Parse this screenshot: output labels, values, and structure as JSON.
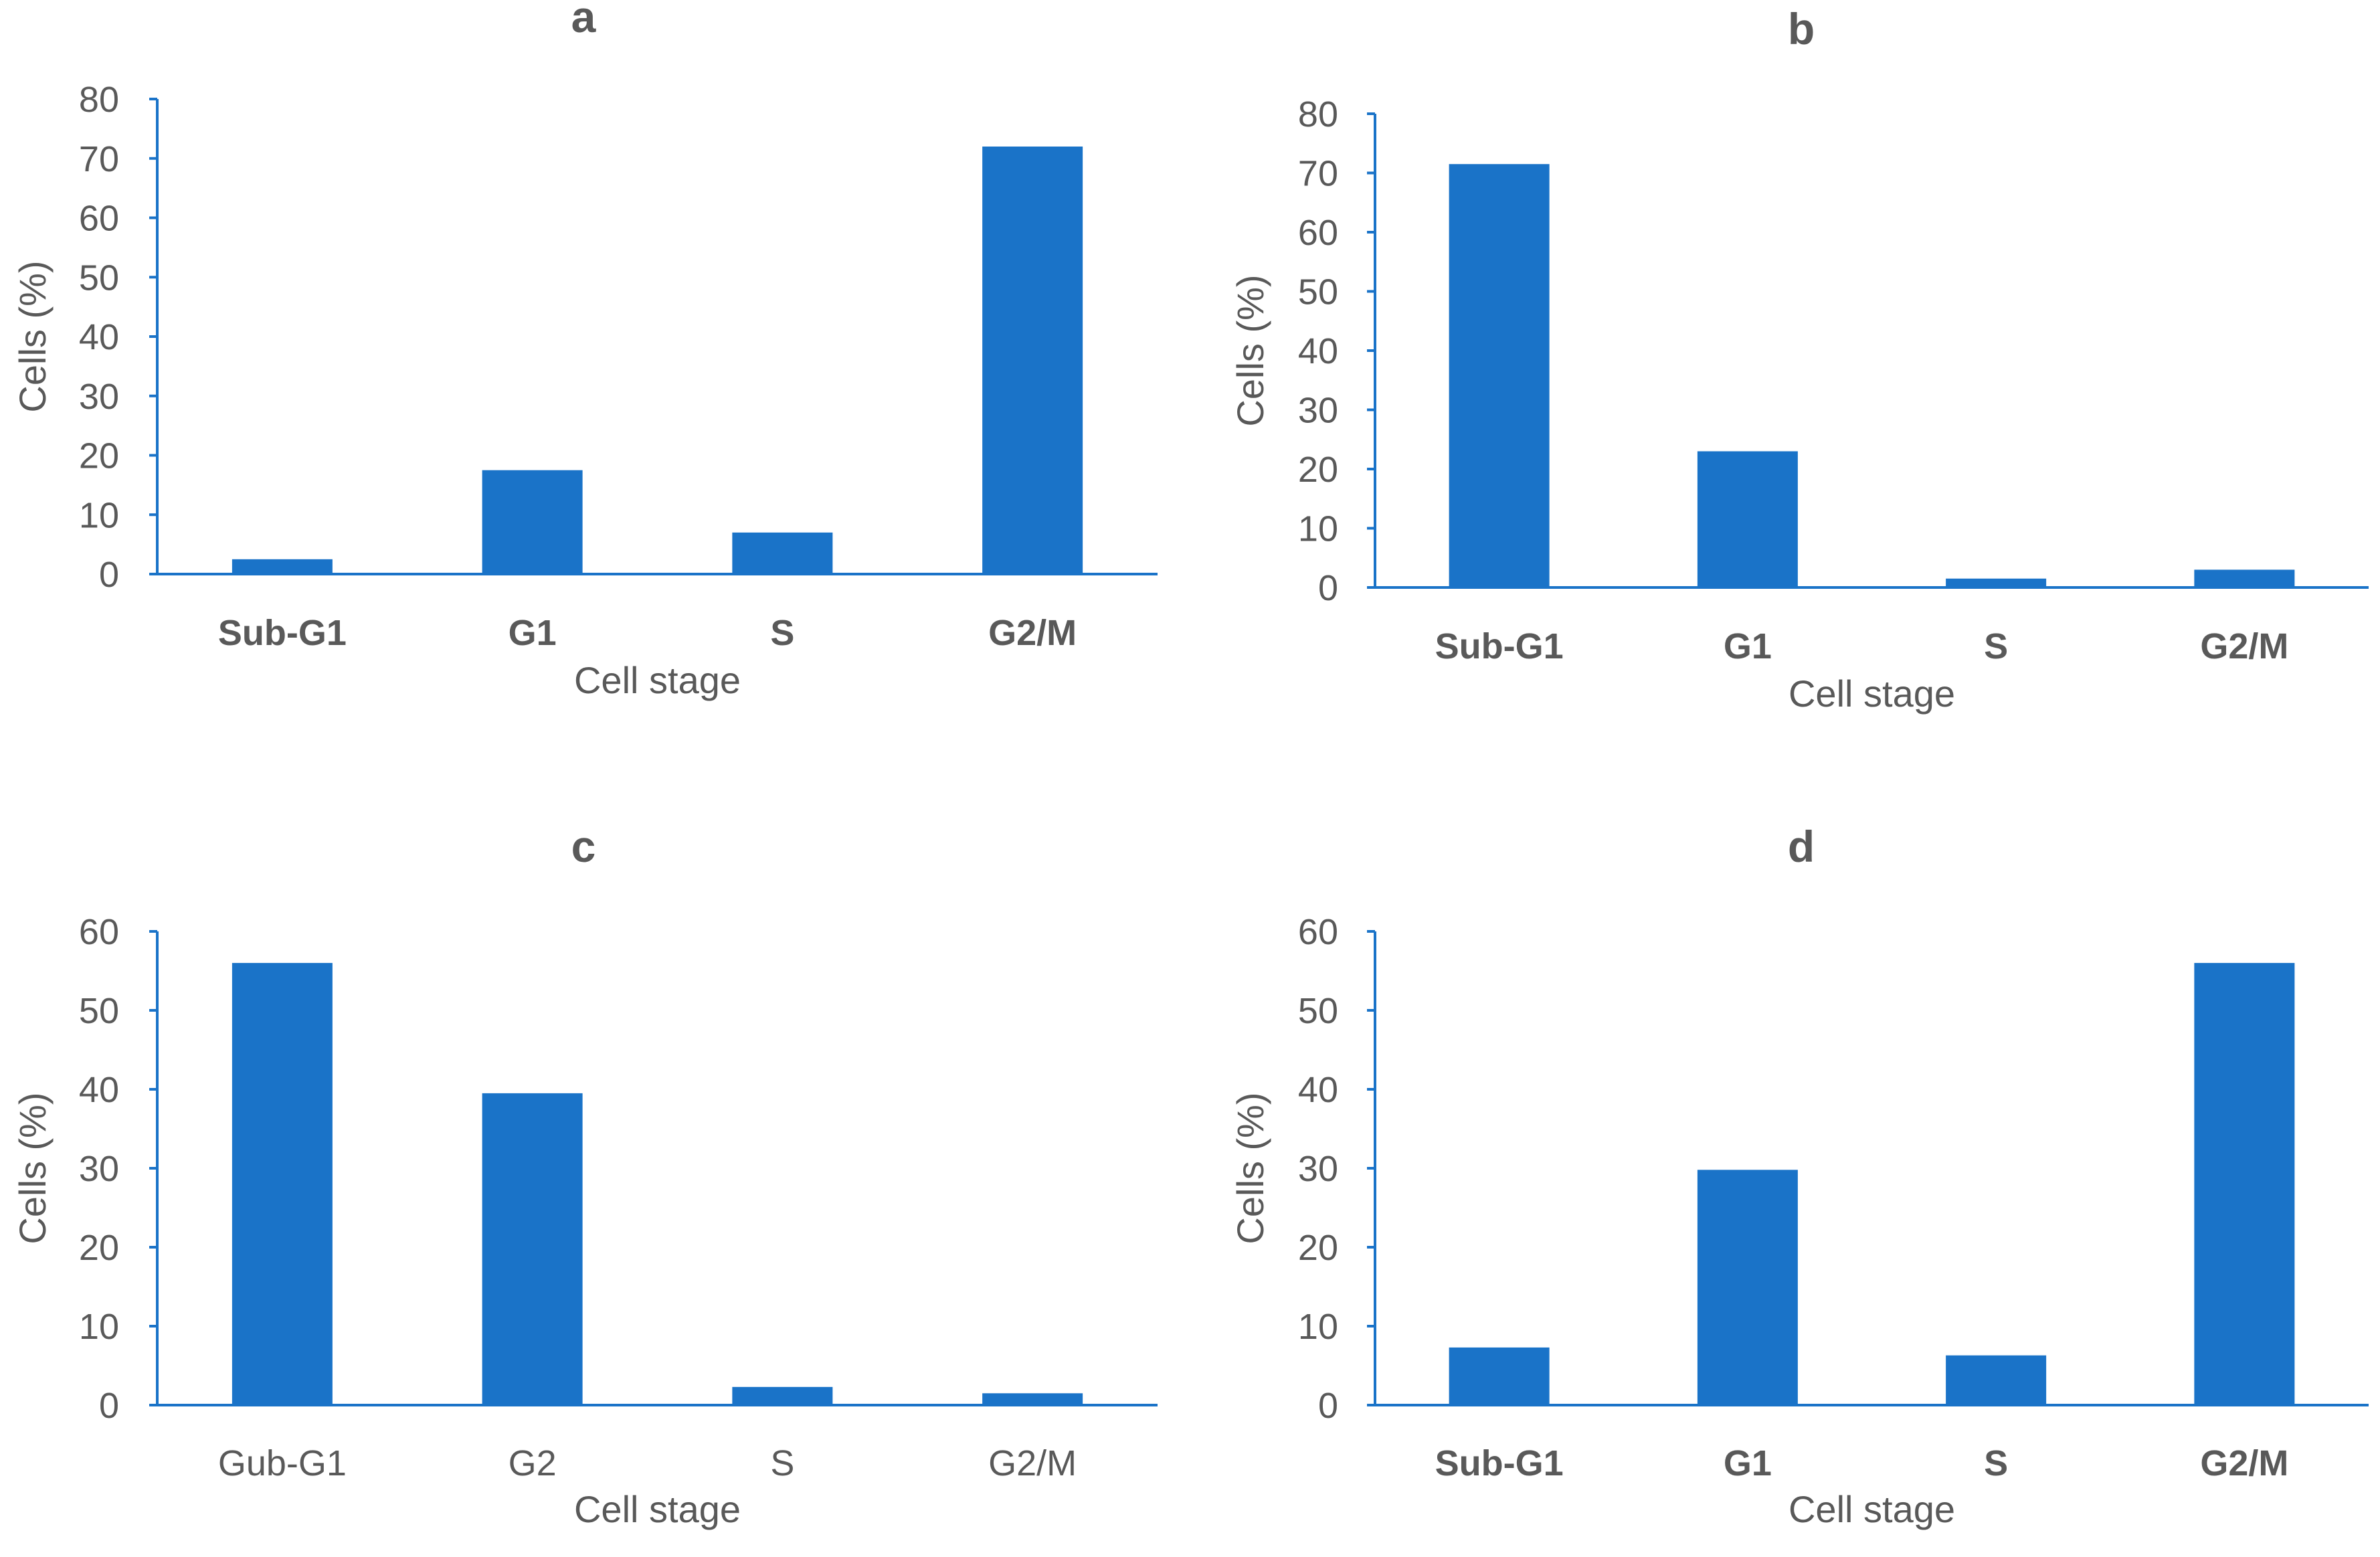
{
  "colors": {
    "bar": "#1a73c8",
    "axis": "#1a73c8",
    "text": "#595959",
    "background": "#ffffff"
  },
  "chart_data": [
    {
      "type": "bar",
      "title": "a",
      "categories": [
        "Sub-G1",
        "G1",
        "S",
        "G2/M"
      ],
      "category_labels_bold": true,
      "values": [
        2.5,
        17.5,
        7,
        72
      ],
      "xlabel": "Cell stage",
      "ylabel": "Cells (%)",
      "ylim": [
        0,
        80
      ],
      "yticks": [
        "0",
        "10",
        "20",
        "30",
        "40",
        "50",
        "60",
        "70",
        "80"
      ],
      "grid": false
    },
    {
      "type": "bar",
      "title": "b",
      "categories": [
        "Sub-G1",
        "G1",
        "S",
        "G2/M"
      ],
      "category_labels_bold": true,
      "values": [
        71.5,
        23,
        1.5,
        3
      ],
      "xlabel": "Cell stage",
      "ylabel": "Cells (%)",
      "ylim": [
        0,
        80
      ],
      "yticks": [
        "0",
        "10",
        "20",
        "30",
        "40",
        "50",
        "60",
        "70",
        "80"
      ],
      "grid": false
    },
    {
      "type": "bar",
      "title": "c",
      "categories": [
        "Gub-G1",
        "G2",
        "S",
        "G2/M"
      ],
      "category_labels_bold": false,
      "values": [
        56,
        39.5,
        2.3,
        1.5
      ],
      "xlabel": "Cell stage",
      "ylabel": "Cells (%)",
      "ylim": [
        0,
        60
      ],
      "yticks": [
        "0",
        "10",
        "20",
        "30",
        "40",
        "50",
        "60"
      ],
      "grid": false
    },
    {
      "type": "bar",
      "title": "d",
      "categories": [
        "Sub-G1",
        "G1",
        "S",
        "G2/M"
      ],
      "category_labels_bold": true,
      "values": [
        7.3,
        29.8,
        6.3,
        56
      ],
      "xlabel": "Cell stage",
      "ylabel": "Cells (%)",
      "ylim": [
        0,
        60
      ],
      "yticks": [
        "0",
        "10",
        "20",
        "30",
        "40",
        "50",
        "60"
      ],
      "grid": false
    }
  ]
}
